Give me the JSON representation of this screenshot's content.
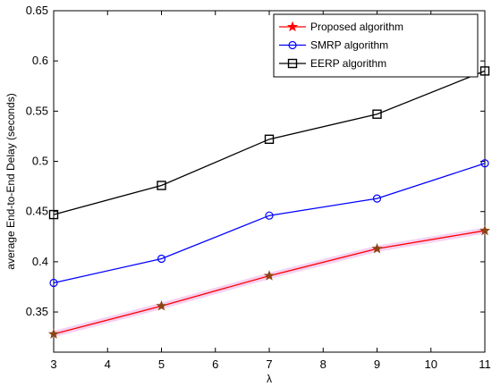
{
  "chart_data": {
    "type": "line",
    "xlabel": "λ",
    "ylabel": "average End-to-End Delay (seconds)",
    "x": [
      3,
      5,
      7,
      9,
      11
    ],
    "xlim": [
      3,
      11
    ],
    "ylim": [
      0.31,
      0.65
    ],
    "x_ticks": [
      "3",
      "4",
      "5",
      "6",
      "7",
      "8",
      "9",
      "10",
      "11"
    ],
    "y_ticks": [
      "0.35",
      "0.4",
      "0.45",
      "0.5",
      "0.55",
      "0.6",
      "0.65"
    ],
    "grid": false,
    "legend_position": "top-right",
    "series": [
      {
        "name": "Proposed algorithm",
        "values": [
          0.328,
          0.356,
          0.386,
          0.413,
          0.431
        ],
        "color": "#ff0000",
        "marker_color": "#8b4513",
        "marker": "star"
      },
      {
        "name": "SMRP algorithm",
        "values": [
          0.379,
          0.403,
          0.446,
          0.463,
          0.498
        ],
        "color": "#0000ff",
        "marker": "circle"
      },
      {
        "name": "EERP algorithm",
        "values": [
          0.447,
          0.476,
          0.522,
          0.547,
          0.59
        ],
        "color": "#000000",
        "marker": "square"
      }
    ]
  }
}
